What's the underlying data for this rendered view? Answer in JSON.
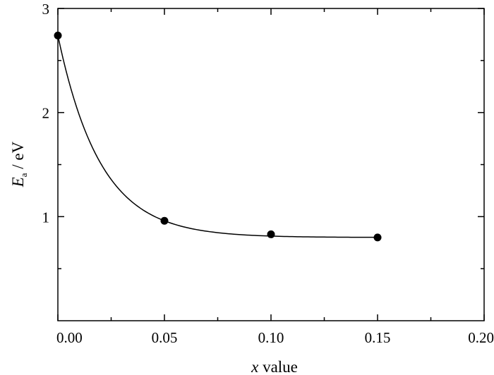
{
  "chart_data": {
    "type": "scatter",
    "xlabel_var": "x",
    "xlabel_rest": " value",
    "ylabel_var": "E",
    "ylabel_sub": "a",
    "ylabel_rest": " / eV",
    "xlim": [
      0.0,
      0.2
    ],
    "ylim": [
      0,
      3
    ],
    "x_ticks": [
      0.0,
      0.05,
      0.1,
      0.15,
      0.2
    ],
    "x_tick_labels": [
      "0.00",
      "0.05",
      "0.10",
      "0.15",
      "0.20"
    ],
    "x_minor_ticks": [
      0.025,
      0.075,
      0.125,
      0.175
    ],
    "y_ticks": [
      1,
      2,
      3
    ],
    "y_tick_labels": [
      "1",
      "2",
      "3"
    ],
    "y_minor_ticks": [
      0.5,
      1.5,
      2.5
    ],
    "grid": false,
    "legend": "none",
    "series": [
      {
        "x": [
          0.0,
          0.05,
          0.1,
          0.15
        ],
        "y": [
          2.74,
          0.96,
          0.83,
          0.8
        ],
        "marker": "filled-circle",
        "color": "#000000"
      }
    ],
    "fit_curve": {
      "type": "exponential-decay",
      "x_range": [
        0.0,
        0.15
      ],
      "color": "#000000"
    }
  }
}
